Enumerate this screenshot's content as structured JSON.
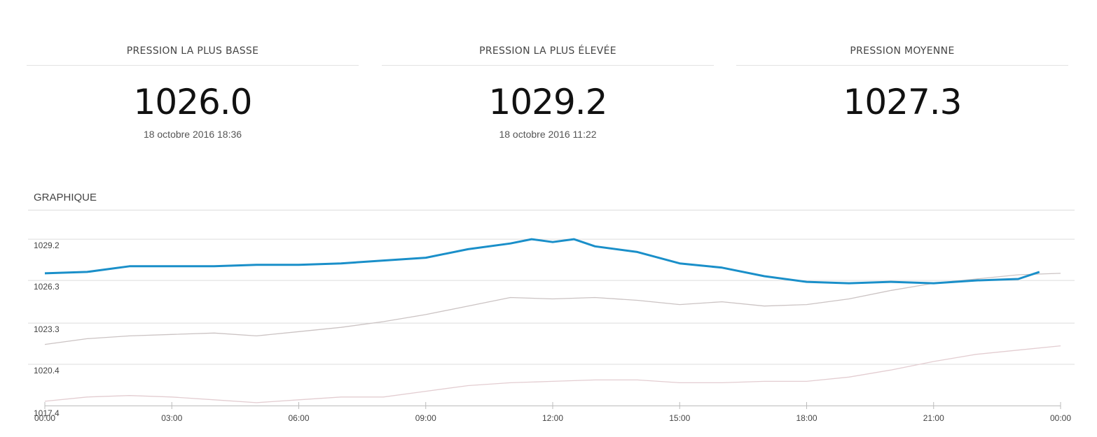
{
  "stats": [
    {
      "label": "PRESSION LA PLUS BASSE",
      "value": "1026.0",
      "date": "18 octobre 2016 18:36"
    },
    {
      "label": "PRESSION LA PLUS ÉLEVÉE",
      "value": "1029.2",
      "date": "18 octobre 2016 11:22"
    },
    {
      "label": "PRESSION MOYENNE",
      "value": "1027.3"
    }
  ],
  "chart_data": {
    "type": "line",
    "title": "GRAPHIQUE",
    "xlim": [
      0,
      24
    ],
    "xticks": [
      {
        "value": 0,
        "label": "00:00"
      },
      {
        "value": 3,
        "label": "03:00"
      },
      {
        "value": 6,
        "label": "06:00"
      },
      {
        "value": 9,
        "label": "09:00"
      },
      {
        "value": 12,
        "label": "12:00"
      },
      {
        "value": 15,
        "label": "15:00"
      },
      {
        "value": 18,
        "label": "18:00"
      },
      {
        "value": 21,
        "label": "21:00"
      },
      {
        "value": 24,
        "label": "00:00"
      }
    ],
    "ylim": [
      1017.4,
      1029.6
    ],
    "yticks": [
      1017.4,
      1020.4,
      1023.3,
      1026.3,
      1029.2
    ],
    "grid": true,
    "series": [
      {
        "color": "#e3cdd1",
        "x": [
          0,
          1,
          2,
          3,
          4,
          5,
          6,
          7,
          8,
          9,
          10,
          11,
          12,
          13,
          14,
          15,
          16,
          17,
          18,
          19,
          20,
          21,
          22,
          23,
          24
        ],
        "values": [
          1017.8,
          1018.1,
          1018.2,
          1018.1,
          1017.9,
          1017.7,
          1017.9,
          1018.1,
          1018.1,
          1018.5,
          1018.9,
          1019.1,
          1019.2,
          1019.3,
          1019.3,
          1019.1,
          1019.1,
          1019.2,
          1019.2,
          1019.5,
          1020.0,
          1020.6,
          1021.1,
          1021.4,
          1021.7
        ]
      },
      {
        "color": "#cbc3c3",
        "x": [
          0,
          1,
          2,
          3,
          4,
          5,
          6,
          7,
          8,
          9,
          10,
          11,
          12,
          13,
          14,
          15,
          16,
          17,
          18,
          19,
          20,
          21,
          22,
          23,
          24
        ],
        "values": [
          1021.8,
          1022.2,
          1022.4,
          1022.5,
          1022.6,
          1022.4,
          1022.7,
          1023.0,
          1023.4,
          1023.9,
          1024.5,
          1025.1,
          1025.0,
          1025.1,
          1024.9,
          1024.6,
          1024.8,
          1024.5,
          1024.6,
          1025.0,
          1025.6,
          1026.1,
          1026.4,
          1026.7,
          1026.8
        ]
      },
      {
        "color": "#1a8fc9",
        "x": [
          0,
          1,
          2,
          3,
          4,
          5,
          6,
          7,
          8,
          9,
          10,
          11,
          11.5,
          12,
          12.5,
          13,
          14,
          15,
          16,
          17,
          18,
          19,
          20,
          21,
          22,
          23,
          23.5
        ],
        "values": [
          1026.8,
          1026.9,
          1027.3,
          1027.3,
          1027.3,
          1027.4,
          1027.4,
          1027.5,
          1027.7,
          1027.9,
          1028.5,
          1028.9,
          1029.2,
          1029.0,
          1029.2,
          1028.7,
          1028.3,
          1027.5,
          1027.2,
          1026.6,
          1026.2,
          1026.1,
          1026.2,
          1026.1,
          1026.3,
          1026.4,
          1026.9
        ]
      }
    ]
  }
}
